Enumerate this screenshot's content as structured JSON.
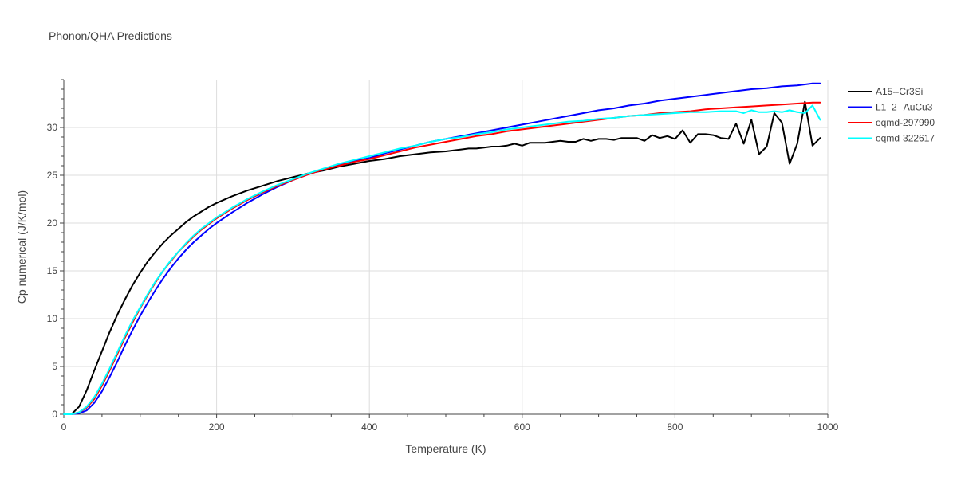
{
  "chart_data": {
    "type": "line",
    "title": "Phonon/QHA Predictions",
    "xlabel": "Temperature (K)",
    "ylabel": "Cp numerical (J/K/mol)",
    "xlim": [
      0,
      1000
    ],
    "ylim": [
      0,
      35
    ],
    "xticks": [
      0,
      200,
      400,
      600,
      800,
      1000
    ],
    "yticks": [
      0,
      5,
      10,
      15,
      20,
      25,
      30
    ],
    "grid": true,
    "legend_position": "right",
    "series": [
      {
        "name": "A15--Cr3Si",
        "color": "#000000",
        "x": [
          0,
          10,
          20,
          30,
          40,
          50,
          60,
          70,
          80,
          90,
          100,
          110,
          120,
          130,
          140,
          150,
          160,
          170,
          180,
          190,
          200,
          220,
          240,
          260,
          280,
          300,
          320,
          340,
          360,
          380,
          400,
          420,
          440,
          460,
          480,
          500,
          520,
          530,
          540,
          550,
          560,
          570,
          580,
          590,
          600,
          610,
          620,
          630,
          640,
          650,
          660,
          670,
          680,
          690,
          700,
          710,
          720,
          730,
          740,
          750,
          760,
          770,
          780,
          790,
          800,
          810,
          820,
          830,
          840,
          850,
          860,
          870,
          880,
          890,
          900,
          910,
          920,
          930,
          940,
          950,
          960,
          970,
          980,
          990
        ],
        "y": [
          0,
          0,
          0.8,
          2.5,
          4.6,
          6.6,
          8.6,
          10.4,
          12,
          13.5,
          14.8,
          16,
          17,
          17.9,
          18.7,
          19.4,
          20.1,
          20.7,
          21.2,
          21.7,
          22.1,
          22.8,
          23.4,
          23.9,
          24.4,
          24.8,
          25.2,
          25.5,
          25.9,
          26.2,
          26.5,
          26.7,
          27,
          27.2,
          27.4,
          27.5,
          27.7,
          27.8,
          27.8,
          27.9,
          28,
          28,
          28.1,
          28.3,
          28.1,
          28.4,
          28.4,
          28.4,
          28.5,
          28.6,
          28.5,
          28.5,
          28.8,
          28.6,
          28.8,
          28.8,
          28.7,
          28.9,
          28.9,
          28.9,
          28.6,
          29.2,
          28.9,
          29.1,
          28.8,
          29.7,
          28.4,
          29.3,
          29.3,
          29.2,
          28.9,
          28.8,
          30.4,
          28.3,
          30.8,
          27.2,
          28,
          31.5,
          30.5,
          26.2,
          28.3,
          32.7,
          28.1,
          28.9
        ]
      },
      {
        "name": "L1_2--AuCu3",
        "color": "#0000ff",
        "x": [
          0,
          10,
          20,
          30,
          40,
          50,
          60,
          70,
          80,
          90,
          100,
          110,
          120,
          130,
          140,
          150,
          160,
          170,
          180,
          190,
          200,
          220,
          240,
          260,
          280,
          300,
          320,
          340,
          360,
          380,
          400,
          420,
          440,
          460,
          480,
          500,
          520,
          540,
          560,
          580,
          600,
          620,
          640,
          660,
          680,
          700,
          720,
          740,
          760,
          780,
          800,
          820,
          840,
          860,
          880,
          900,
          920,
          940,
          960,
          980,
          990
        ],
        "y": [
          0,
          0,
          0.1,
          0.4,
          1.2,
          2.4,
          3.9,
          5.5,
          7.2,
          8.8,
          10.3,
          11.7,
          13,
          14.2,
          15.3,
          16.3,
          17.2,
          18,
          18.7,
          19.4,
          20,
          21.1,
          22.1,
          23,
          23.8,
          24.5,
          25.1,
          25.6,
          26.1,
          26.5,
          26.8,
          27.3,
          27.7,
          28.1,
          28.5,
          28.8,
          29.1,
          29.4,
          29.7,
          30,
          30.3,
          30.6,
          30.9,
          31.2,
          31.5,
          31.8,
          32,
          32.3,
          32.5,
          32.8,
          33,
          33.2,
          33.4,
          33.6,
          33.8,
          34,
          34.1,
          34.3,
          34.4,
          34.6,
          34.6
        ]
      },
      {
        "name": "oqmd-297990",
        "color": "#ff0000",
        "x": [
          0,
          10,
          20,
          30,
          40,
          50,
          60,
          70,
          80,
          90,
          100,
          110,
          120,
          130,
          140,
          150,
          160,
          170,
          180,
          190,
          200,
          220,
          240,
          260,
          280,
          300,
          320,
          340,
          360,
          380,
          400,
          420,
          440,
          460,
          480,
          500,
          520,
          540,
          560,
          580,
          600,
          620,
          640,
          660,
          680,
          700,
          720,
          740,
          760,
          780,
          800,
          820,
          840,
          860,
          880,
          900,
          920,
          940,
          960,
          980,
          990
        ],
        "y": [
          0,
          0,
          0.2,
          0.7,
          1.6,
          3,
          4.6,
          6.3,
          8,
          9.6,
          11.1,
          12.5,
          13.8,
          15,
          16,
          17,
          17.8,
          18.6,
          19.3,
          19.9,
          20.5,
          21.5,
          22.4,
          23.2,
          23.9,
          24.5,
          25.1,
          25.6,
          26,
          26.4,
          26.7,
          27.1,
          27.5,
          27.9,
          28.2,
          28.5,
          28.8,
          29.1,
          29.3,
          29.6,
          29.8,
          30,
          30.2,
          30.4,
          30.6,
          30.8,
          31,
          31.2,
          31.3,
          31.5,
          31.6,
          31.7,
          31.9,
          32,
          32.1,
          32.2,
          32.3,
          32.4,
          32.5,
          32.6,
          32.6
        ]
      },
      {
        "name": "oqmd-322617",
        "color": "#00ffff",
        "x": [
          0,
          10,
          20,
          30,
          40,
          50,
          60,
          70,
          80,
          90,
          100,
          110,
          120,
          130,
          140,
          150,
          160,
          170,
          180,
          190,
          200,
          220,
          240,
          260,
          280,
          300,
          320,
          340,
          360,
          380,
          400,
          420,
          440,
          460,
          480,
          500,
          520,
          540,
          560,
          580,
          600,
          620,
          640,
          660,
          680,
          700,
          720,
          740,
          760,
          780,
          800,
          820,
          840,
          860,
          880,
          890,
          900,
          910,
          920,
          930,
          940,
          950,
          960,
          970,
          980,
          990
        ],
        "y": [
          0,
          0,
          0.2,
          0.8,
          1.8,
          3.2,
          4.8,
          6.5,
          8.2,
          9.8,
          11.2,
          12.6,
          13.9,
          15,
          16.1,
          17,
          17.9,
          18.7,
          19.4,
          20,
          20.6,
          21.6,
          22.5,
          23.3,
          24,
          24.6,
          25.2,
          25.7,
          26.2,
          26.6,
          27,
          27.4,
          27.8,
          28.1,
          28.5,
          28.8,
          29,
          29.3,
          29.5,
          29.8,
          30,
          30.2,
          30.4,
          30.6,
          30.7,
          30.9,
          31,
          31.2,
          31.3,
          31.4,
          31.5,
          31.6,
          31.6,
          31.7,
          31.7,
          31.5,
          31.8,
          31.6,
          31.6,
          31.7,
          31.6,
          31.8,
          31.6,
          31.5,
          32.3,
          30.8
        ]
      }
    ]
  }
}
